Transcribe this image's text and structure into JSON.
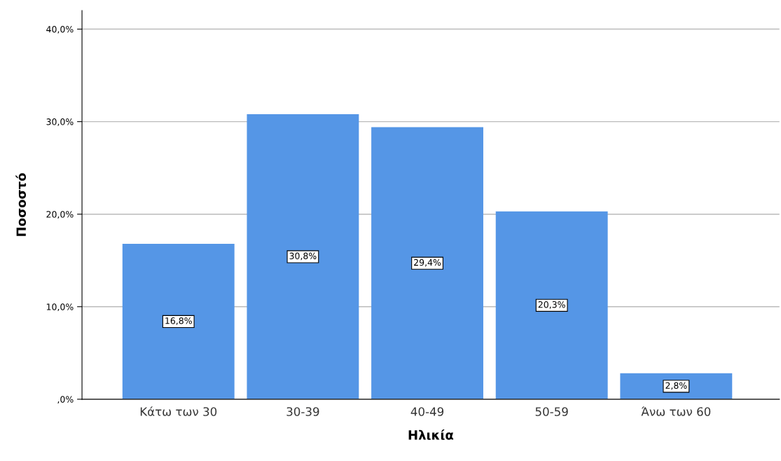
{
  "chart_data": {
    "type": "bar",
    "xlabel": "Ηλικία",
    "ylabel": "Ποσοστό",
    "categories": [
      "Κάτω των 30",
      "30-39",
      "40-49",
      "50-59",
      "Άνω των 60"
    ],
    "values": [
      16.8,
      30.8,
      29.4,
      20.3,
      2.8
    ],
    "value_labels": [
      "16,8%",
      "30,8%",
      "29,4%",
      "20,3%",
      "2,8%"
    ],
    "color": "#5596e6",
    "ylim": [
      0,
      42
    ],
    "yticks": [
      {
        "value": 0,
        "label": ",0%"
      },
      {
        "value": 10,
        "label": "10,0%"
      },
      {
        "value": 20,
        "label": "20,0%"
      },
      {
        "value": 30,
        "label": "30,0%"
      },
      {
        "value": 40,
        "label": "40,0%"
      }
    ],
    "grid": "y"
  }
}
